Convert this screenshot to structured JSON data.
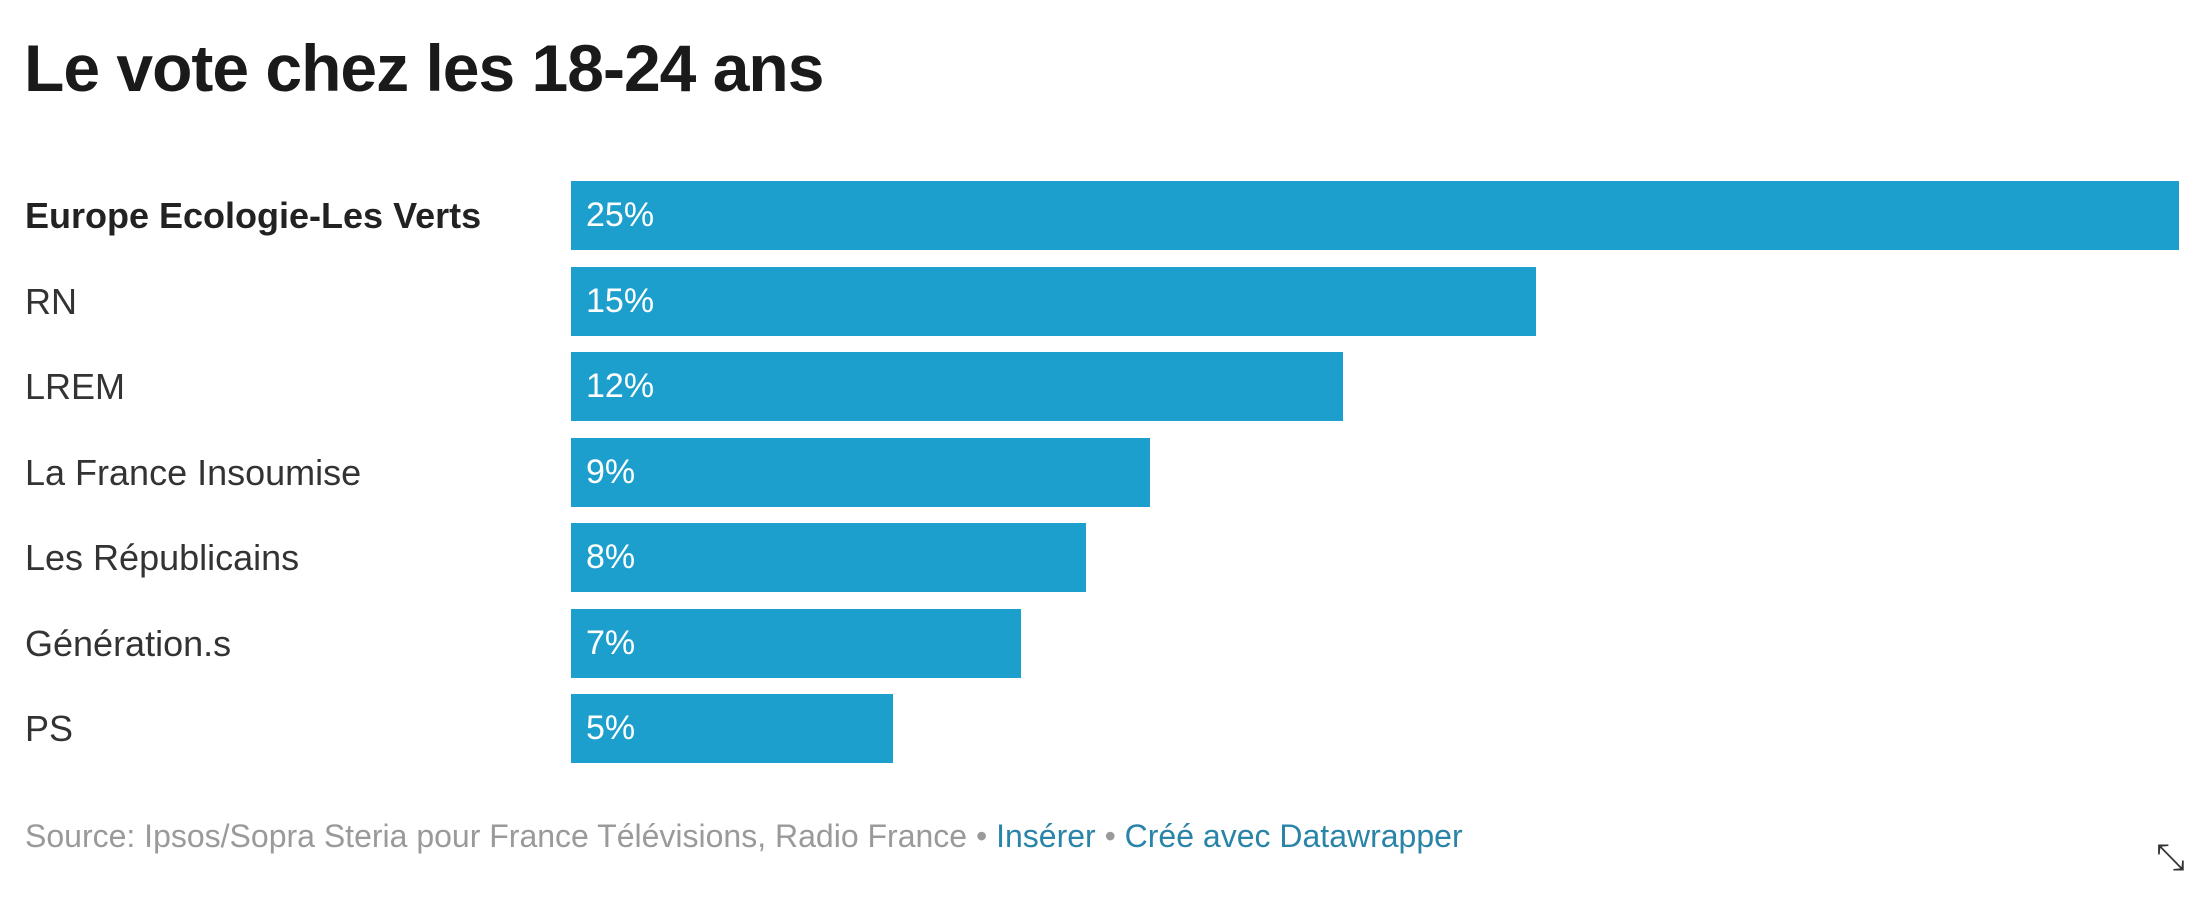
{
  "chart_data": {
    "type": "bar",
    "orientation": "horizontal",
    "title": "Le vote chez les 18-24 ans",
    "categories": [
      "Europe Ecologie-Les Verts",
      "RN",
      "LREM",
      "La France Insoumise",
      "Les Républicains",
      "Génération.s",
      "PS"
    ],
    "values": [
      25,
      15,
      12,
      9,
      8,
      7,
      5
    ],
    "value_labels": [
      "25%",
      "15%",
      "12%",
      "9%",
      "8%",
      "7%",
      "5%"
    ],
    "highlighted": "Europe Ecologie-Les Verts",
    "xlim": [
      0,
      25
    ],
    "grid": false,
    "bar_color": "#1c9fcd"
  },
  "footer": {
    "source": "Source: Ipsos/Sopra Steria pour France Télévisions, Radio France",
    "separator": " • ",
    "insert_link": "Insérer",
    "credit_link": "Créé avec Datawrapper"
  },
  "icons": {
    "resize": "resize-arrow-icon"
  }
}
